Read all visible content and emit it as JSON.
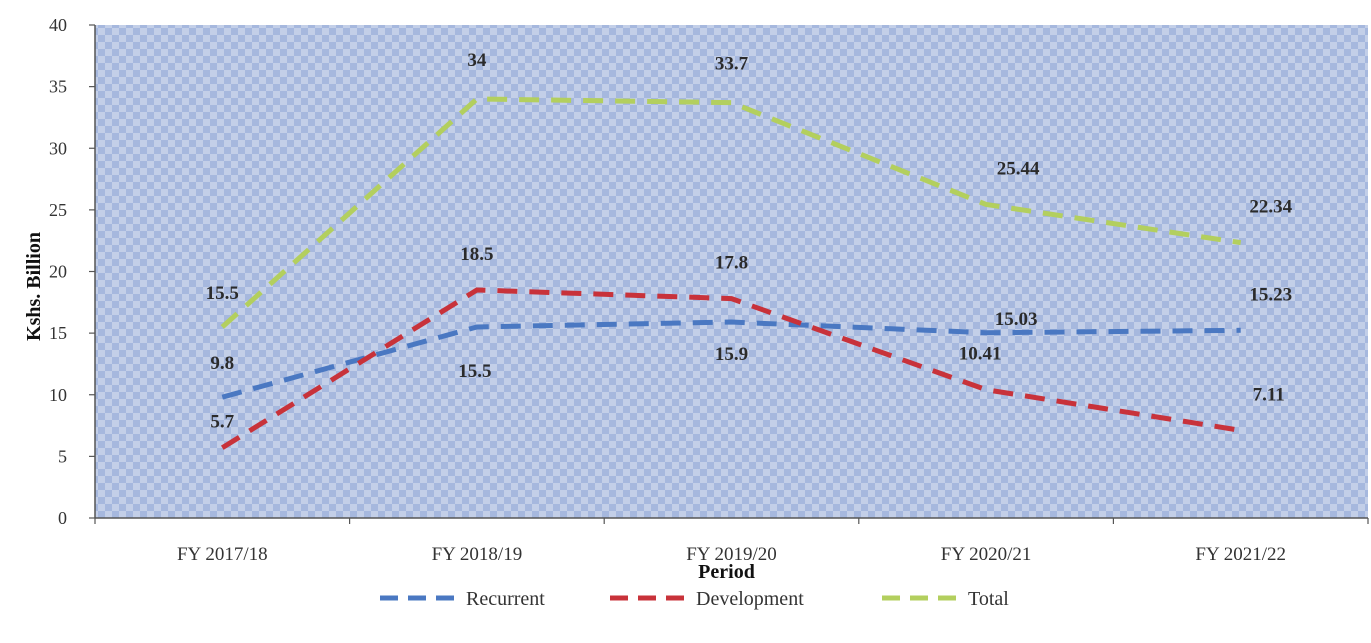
{
  "chart_data": {
    "type": "line",
    "title": "",
    "xlabel": "Period",
    "ylabel": "Kshs. Billion",
    "categories": [
      "FY 2017/18",
      "FY 2018/19",
      "FY 2019/20",
      "FY 2020/21",
      "FY 2021/22"
    ],
    "ylim": [
      0,
      40
    ],
    "yticks": [
      0,
      5,
      10,
      15,
      20,
      25,
      30,
      35,
      40
    ],
    "series": [
      {
        "name": "Recurrent",
        "values": [
          9.8,
          15.5,
          15.9,
          15.03,
          15.23
        ],
        "labels": [
          "9.8",
          "15.5",
          "15.9",
          "15.03",
          "15.23"
        ],
        "color": "#4a78c2",
        "dashed": true
      },
      {
        "name": "Development",
        "values": [
          5.7,
          18.5,
          17.8,
          10.41,
          7.11
        ],
        "labels": [
          "5.7",
          "18.5",
          "17.8",
          "10.41",
          "7.11"
        ],
        "color": "#c8323a",
        "dashed": true
      },
      {
        "name": "Total",
        "values": [
          15.5,
          34,
          33.7,
          25.44,
          22.34
        ],
        "labels": [
          "15.5",
          "34",
          "33.7",
          "25.44",
          "22.34"
        ],
        "color": "#b3cf5e",
        "dashed": true
      }
    ],
    "legend_position": "bottom",
    "grid": false,
    "plot_background": "#9fb3dc"
  }
}
